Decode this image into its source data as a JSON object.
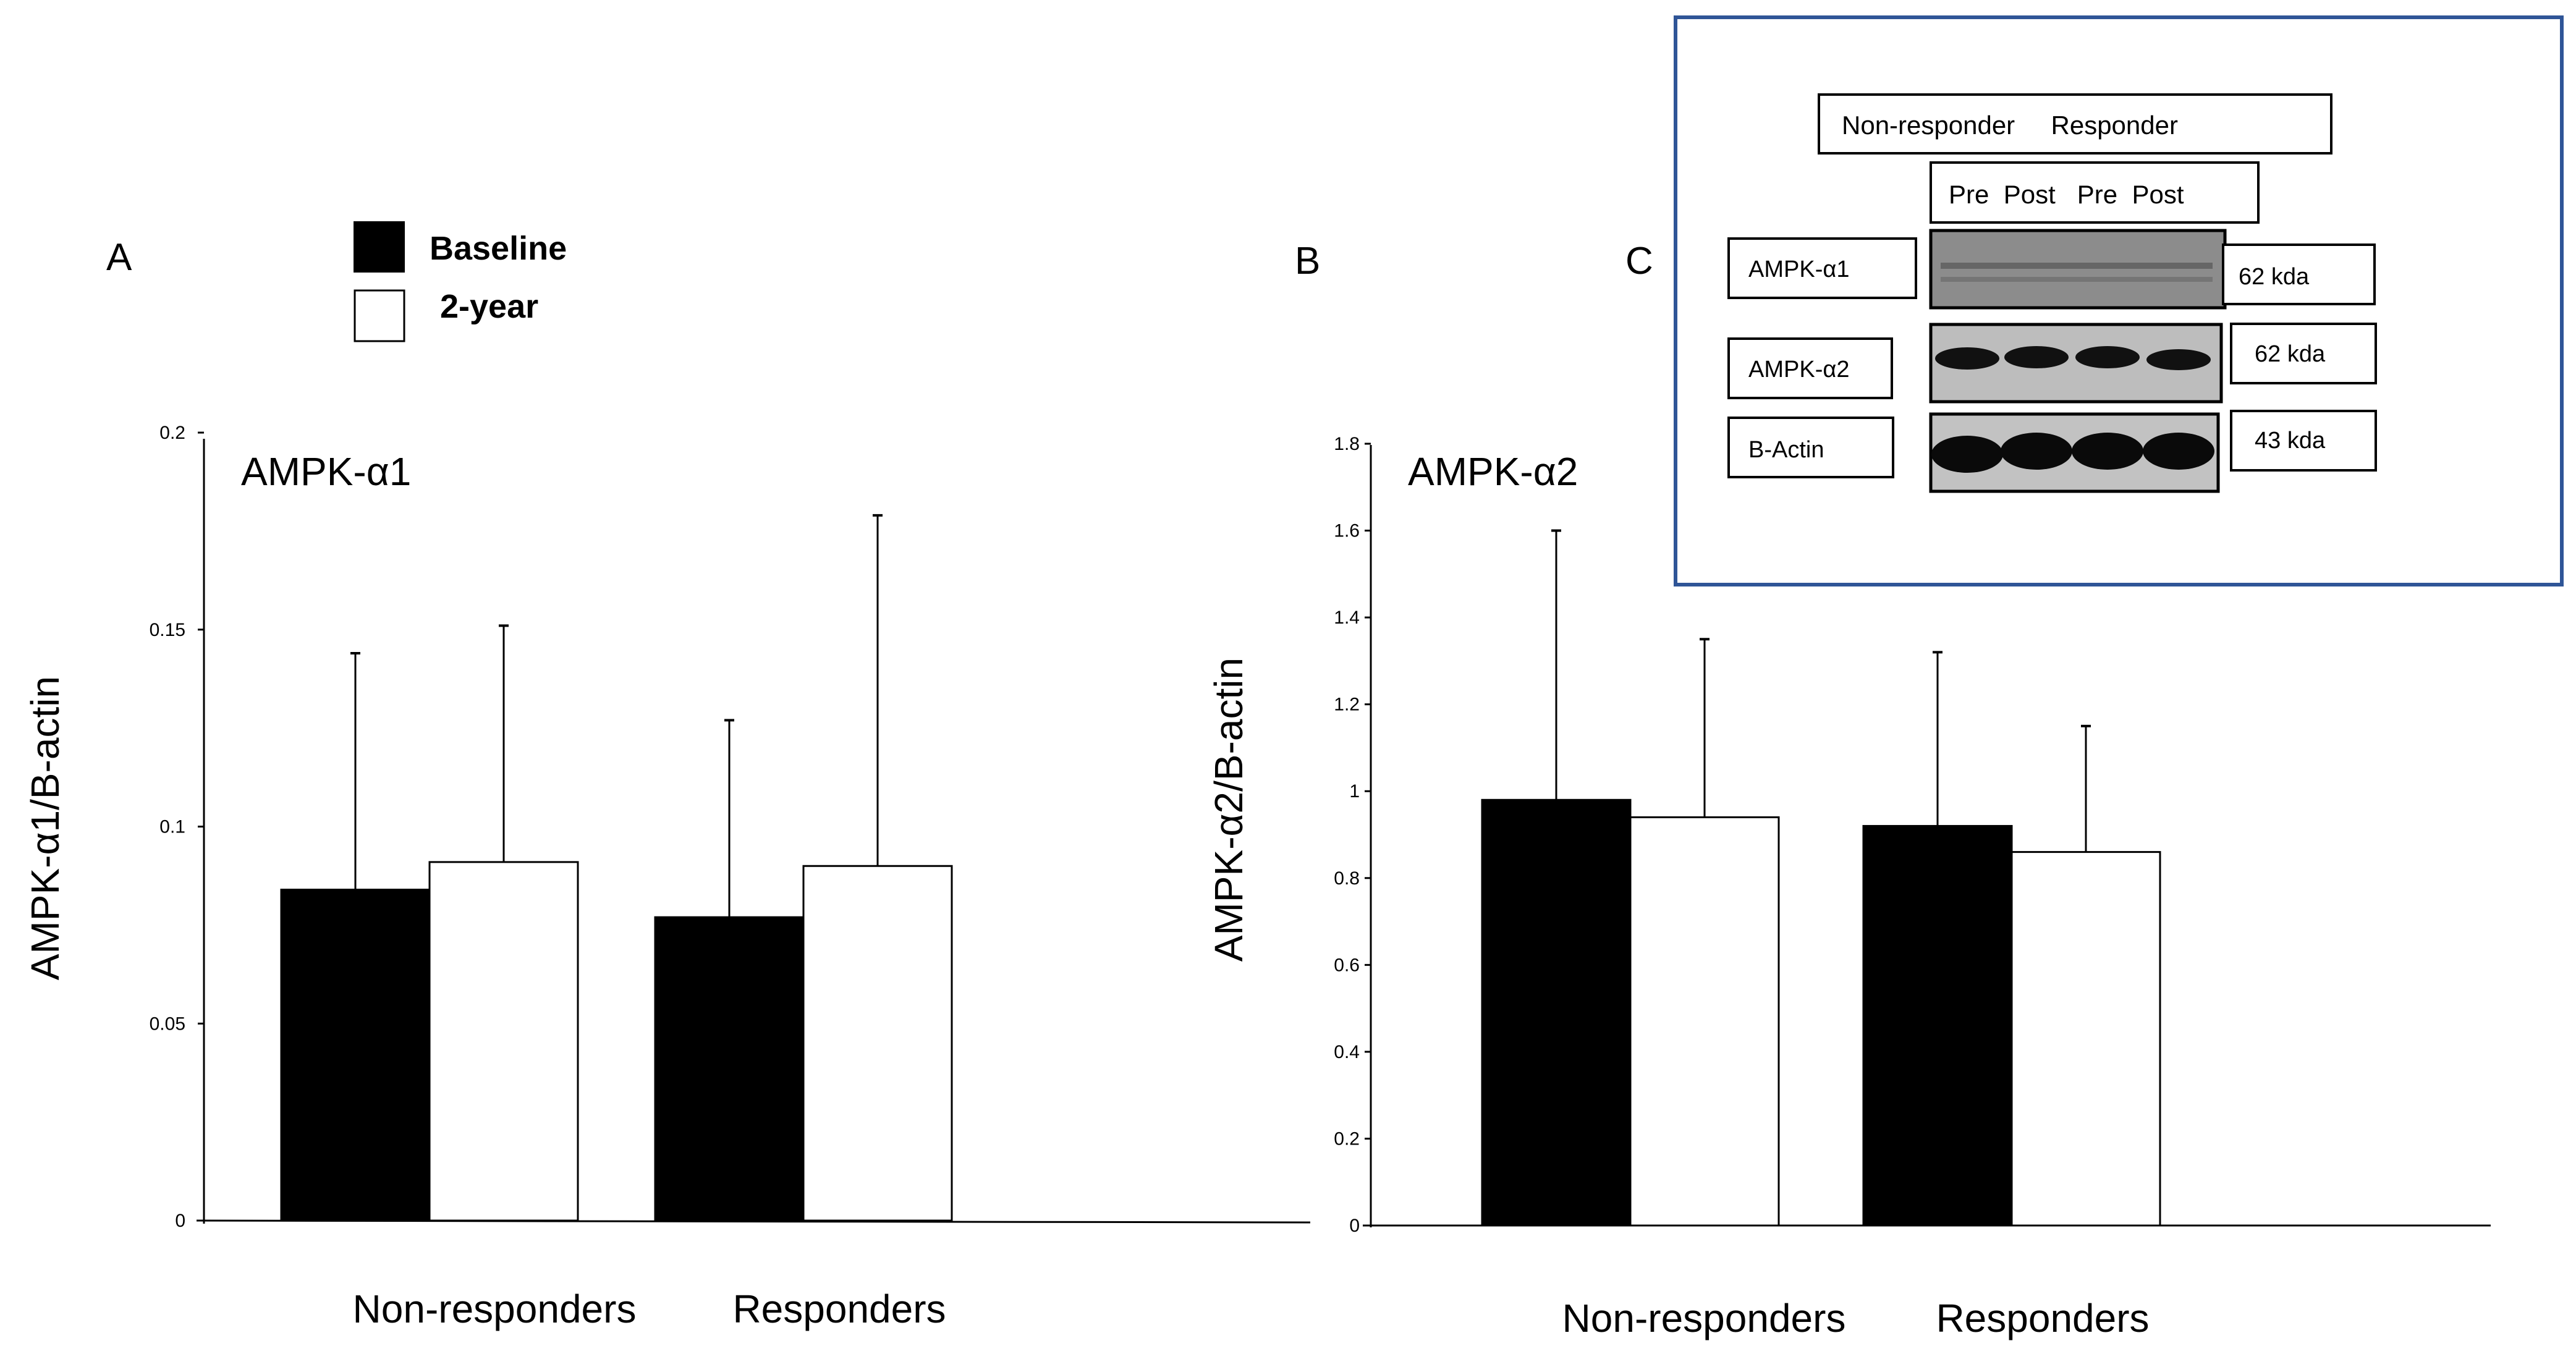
{
  "legend": {
    "items": [
      {
        "label": "Baseline",
        "color": "#000000"
      },
      {
        "label": "2-year",
        "color": "#ffffff"
      }
    ]
  },
  "chart_data": [
    {
      "type": "bar",
      "panel": "A",
      "title": "AMPK-α1",
      "ylabel": "AMPK-α1/B-actin",
      "xlabel": "",
      "categories": [
        "Non-responders",
        "Responders"
      ],
      "ylim": [
        0,
        0.2
      ],
      "yticks": [
        0,
        0.05,
        0.1,
        0.15,
        0.2
      ],
      "ytick_labels": [
        "0",
        "0.05",
        "0.1",
        "0.15",
        "0.2"
      ],
      "series": [
        {
          "name": "Baseline",
          "color": "#000000",
          "values": [
            0.084,
            0.077
          ],
          "errors": [
            0.06,
            0.05
          ]
        },
        {
          "name": "2-year",
          "color": "#ffffff",
          "values": [
            0.091,
            0.09
          ],
          "errors": [
            0.06,
            0.089
          ]
        }
      ],
      "grid": false
    },
    {
      "type": "bar",
      "panel": "B",
      "title": "AMPK-α2",
      "ylabel": "AMPK-α2/B-actin",
      "xlabel": "",
      "categories": [
        "Non-responders",
        "Responders"
      ],
      "ylim": [
        0,
        1.8
      ],
      "yticks": [
        0,
        0.2,
        0.4,
        0.6,
        0.8,
        1.0,
        1.2,
        1.4,
        1.6,
        1.8
      ],
      "ytick_labels": [
        "0",
        "0.2",
        "0.4",
        "0.6",
        "0.8",
        "1",
        "1.2",
        "1.4",
        "1.6",
        "1.8"
      ],
      "series": [
        {
          "name": "Baseline",
          "color": "#000000",
          "values": [
            0.98,
            0.92
          ],
          "errors": [
            0.62,
            0.4
          ]
        },
        {
          "name": "2-year",
          "color": "#ffffff",
          "values": [
            0.94,
            0.86
          ],
          "errors": [
            0.41,
            0.29
          ]
        }
      ],
      "grid": false
    }
  ],
  "western_blot": {
    "panel": "C",
    "groups": "Non-responder     Responder",
    "timepoints": "Pre  Post   Pre  Post",
    "rows": [
      {
        "protein": "AMPK-α1",
        "size": "62 kda"
      },
      {
        "protein": "AMPK-α2",
        "size": "62 kda"
      },
      {
        "protein": "B-Actin",
        "size": "43 kda"
      }
    ],
    "frame_color": "#2f5597"
  }
}
